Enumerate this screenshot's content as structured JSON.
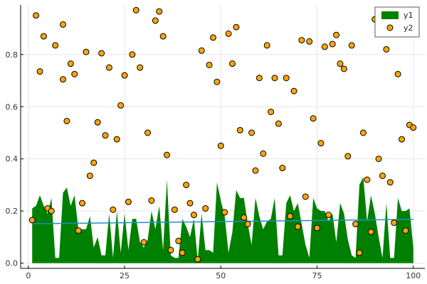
{
  "chart_data": {
    "type": "area",
    "title": "",
    "xlabel": "",
    "ylabel": "",
    "xlim": [
      -2,
      103
    ],
    "ylim": [
      -0.02,
      0.99
    ],
    "grid": true,
    "legend_position": "top-right",
    "x_ticks": [
      0,
      25,
      50,
      75,
      100
    ],
    "y_ticks": [
      0.0,
      0.2,
      0.4,
      0.6,
      0.8
    ],
    "x_tick_labels": [
      "0",
      "25",
      "50",
      "75",
      "100"
    ],
    "y_tick_labels": [
      "0.0",
      "0.2",
      "0.4",
      "0.6",
      "0.8"
    ],
    "series": [
      {
        "name": "y1",
        "kind": "area",
        "color": "#008000",
        "x": [
          1,
          2,
          3,
          4,
          5,
          6,
          7,
          8,
          9,
          10,
          11,
          12,
          13,
          14,
          15,
          16,
          17,
          18,
          19,
          20,
          21,
          22,
          23,
          24,
          25,
          26,
          27,
          28,
          29,
          30,
          31,
          32,
          33,
          34,
          35,
          36,
          37,
          38,
          39,
          40,
          41,
          42,
          43,
          44,
          45,
          46,
          47,
          48,
          49,
          50,
          51,
          52,
          53,
          54,
          55,
          56,
          57,
          58,
          59,
          60,
          61,
          62,
          63,
          64,
          65,
          66,
          67,
          68,
          69,
          70,
          71,
          72,
          73,
          74,
          75,
          76,
          77,
          78,
          79,
          80,
          81,
          82,
          83,
          84,
          85,
          86,
          87,
          88,
          89,
          90,
          91,
          92,
          93,
          94,
          95,
          96,
          97,
          98,
          99,
          100
        ],
        "values": [
          0.21,
          0.22,
          0.26,
          0.22,
          0.19,
          0.25,
          0.02,
          0.02,
          0.27,
          0.29,
          0.22,
          0.26,
          0.13,
          0.13,
          0.13,
          0.18,
          0.06,
          0.1,
          0.03,
          0.03,
          0.19,
          0.02,
          0.2,
          0.04,
          0.19,
          0.05,
          0.17,
          0.17,
          0.08,
          0.06,
          0.09,
          0.2,
          0.13,
          0.22,
          0.05,
          0.32,
          0.03,
          0.02,
          0.02,
          0.17,
          0.14,
          0.1,
          0.17,
          0.01,
          0.19,
          0.05,
          0.05,
          0.04,
          0.31,
          0.24,
          0.18,
          0.04,
          0.12,
          0.28,
          0.25,
          0.25,
          0.15,
          0.07,
          0.25,
          0.18,
          0.13,
          0.16,
          0.17,
          0.25,
          0.03,
          0.03,
          0.23,
          0.26,
          0.2,
          0.23,
          0.15,
          0.07,
          0.02,
          0.25,
          0.21,
          0.2,
          0.2,
          0.16,
          0.19,
          0.08,
          0.23,
          0.19,
          0.09,
          0.03,
          0.02,
          0.3,
          0.33,
          0.16,
          0.26,
          0.19,
          0.1,
          0.02,
          0.23,
          0.02,
          0.02,
          0.25,
          0.2,
          0.2,
          0.21,
          0.06
        ]
      },
      {
        "name": "",
        "kind": "line",
        "color": "#1e90c8",
        "x": [
          1,
          100
        ],
        "values": [
          0.151,
          0.168
        ]
      },
      {
        "name": "y2",
        "kind": "scatter",
        "color": "#ffa500",
        "x": [
          1,
          2,
          3,
          4,
          5,
          6,
          7,
          9,
          9,
          10,
          11,
          12,
          13,
          14,
          15,
          16,
          17,
          18,
          19,
          20,
          21,
          22,
          23,
          24,
          25,
          26,
          27,
          28,
          29,
          30,
          31,
          32,
          33,
          34,
          35,
          36,
          37,
          38,
          39,
          40,
          41,
          42,
          43,
          44,
          45,
          46,
          47,
          48,
          49,
          50,
          51,
          52,
          53,
          54,
          55,
          56,
          57,
          58,
          59,
          60,
          61,
          62,
          63,
          64,
          65,
          66,
          67,
          68,
          69,
          70,
          71,
          72,
          73,
          74,
          75,
          76,
          77,
          78,
          79,
          80,
          81,
          82,
          83,
          84,
          85,
          86,
          87,
          88,
          89,
          90,
          91,
          92,
          93,
          94,
          95,
          96,
          97,
          98,
          99,
          100
        ],
        "values": [
          0.165,
          0.95,
          0.735,
          0.87,
          0.21,
          0.2,
          0.835,
          0.705,
          0.915,
          0.545,
          0.765,
          0.725,
          0.125,
          0.23,
          0.81,
          0.335,
          0.385,
          0.54,
          0.805,
          0.49,
          0.75,
          0.205,
          0.475,
          0.605,
          0.72,
          0.235,
          0.8,
          0.97,
          0.75,
          0.08,
          0.5,
          0.24,
          0.93,
          0.965,
          0.87,
          0.415,
          0.05,
          0.205,
          0.085,
          0.04,
          0.3,
          0.23,
          0.185,
          0.015,
          0.815,
          0.21,
          0.76,
          0.865,
          0.695,
          0.45,
          0.195,
          0.88,
          0.765,
          0.905,
          0.51,
          0.175,
          0.15,
          0.5,
          0.355,
          0.71,
          0.42,
          0.835,
          0.58,
          0.71,
          0.535,
          0.365,
          0.71,
          0.18,
          0.66,
          0.14,
          0.855,
          0.255,
          0.85,
          0.555,
          0.135,
          0.46,
          0.83,
          0.185,
          0.84,
          0.875,
          0.765,
          0.745,
          0.41,
          0.835,
          0.15,
          0.04,
          0.5,
          0.32,
          0.12,
          0.935,
          0.4,
          0.335,
          0.82,
          0.31,
          0.155,
          0.725,
          0.475,
          0.125,
          0.53,
          0.52
        ]
      }
    ],
    "legend": [
      {
        "label": "y1",
        "symbol": "area",
        "color": "#008000"
      },
      {
        "label": "y2",
        "symbol": "marker",
        "color": "#ffa500"
      }
    ]
  }
}
